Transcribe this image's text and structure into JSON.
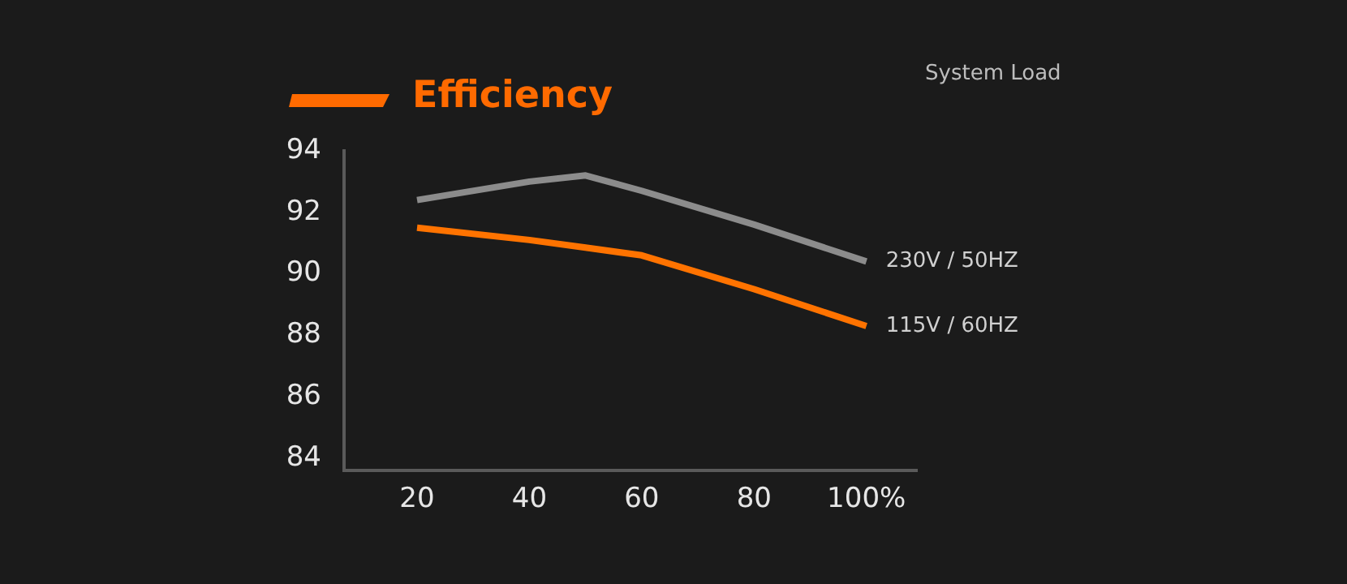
{
  "chart_data": {
    "type": "line",
    "title": "Efficiency",
    "xlabel": "System Load",
    "x": [
      20,
      40,
      50,
      60,
      80,
      100
    ],
    "series": [
      {
        "name": "230V / 50HZ",
        "color": "#8c8c8c",
        "values": [
          92.4,
          93.0,
          93.2,
          92.7,
          91.6,
          90.4
        ]
      },
      {
        "name": "115V / 60HZ",
        "color": "#ff7300",
        "values": [
          91.5,
          91.1,
          90.85,
          90.6,
          89.5,
          88.3
        ]
      }
    ],
    "xlim": [
      7,
      109
    ],
    "xticks": [
      20,
      40,
      60,
      80,
      {
        "value": 100,
        "label": "100%"
      }
    ],
    "ylim": [
      83.6,
      94
    ],
    "yticks": [
      84,
      86,
      88,
      90,
      92,
      94
    ],
    "grid": false,
    "legend": false,
    "marker": "none",
    "line_style": "solid"
  }
}
